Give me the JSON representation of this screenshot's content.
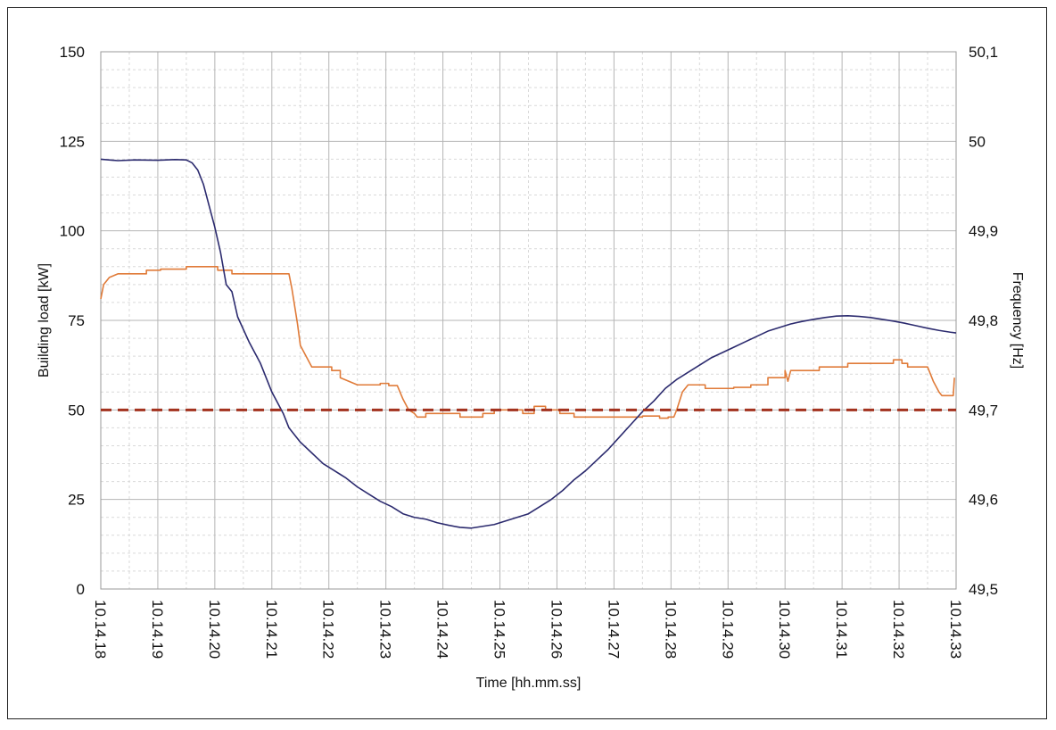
{
  "chart_data": {
    "type": "line",
    "xlabel": "Time [hh.mm.ss]",
    "ylabel_left": "Building load [kW]",
    "ylabel_right": "Frequency [Hz]",
    "x_ticks": [
      "10.14.18",
      "10.14.19",
      "10.14.20",
      "10.14.21",
      "10.14.22",
      "10.14.23",
      "10.14.24",
      "10.14.25",
      "10.14.26",
      "10.14.27",
      "10.14.28",
      "10.14.29",
      "10.14.30",
      "10.14.31",
      "10.14.32",
      "10.14.33"
    ],
    "x_range": [
      0,
      15
    ],
    "y_left_range": [
      0,
      150
    ],
    "y_left_ticks": [
      "0",
      "25",
      "50",
      "75",
      "100",
      "125",
      "150"
    ],
    "y_right_range": [
      49.5,
      50.1
    ],
    "y_right_ticks": [
      "49,5",
      "49,6",
      "49,7",
      "49,8",
      "49,9",
      "50",
      "50,1"
    ],
    "highlight_tick": "49,7",
    "grid": true,
    "colors": {
      "building_load": "#2b2a6e",
      "frequency": "#e07b39",
      "threshold": "#a3321e",
      "grid_major": "#b5b5b5",
      "grid_minor": "#d9d9d9"
    },
    "series": [
      {
        "axis": "left",
        "points": [
          [
            0,
            120
          ],
          [
            0.3,
            119.6
          ],
          [
            0.6,
            119.8
          ],
          [
            1.0,
            119.7
          ],
          [
            1.3,
            119.9
          ],
          [
            1.5,
            119.8
          ],
          [
            1.6,
            119
          ],
          [
            1.7,
            117
          ],
          [
            1.8,
            113
          ],
          [
            1.9,
            107
          ],
          [
            2.0,
            101
          ],
          [
            2.1,
            94
          ],
          [
            2.2,
            85
          ],
          [
            2.3,
            83
          ],
          [
            2.4,
            76
          ],
          [
            2.6,
            69
          ],
          [
            2.8,
            63
          ],
          [
            3.0,
            55
          ],
          [
            3.1,
            52
          ],
          [
            3.2,
            49
          ],
          [
            3.3,
            45
          ],
          [
            3.5,
            41
          ],
          [
            3.7,
            38
          ],
          [
            3.9,
            35
          ],
          [
            4.1,
            33
          ],
          [
            4.3,
            31
          ],
          [
            4.5,
            28.5
          ],
          [
            4.7,
            26.5
          ],
          [
            4.9,
            24.5
          ],
          [
            5.1,
            23
          ],
          [
            5.3,
            21
          ],
          [
            5.5,
            20
          ],
          [
            5.7,
            19.5
          ],
          [
            5.9,
            18.5
          ],
          [
            6.1,
            17.8
          ],
          [
            6.3,
            17.2
          ],
          [
            6.5,
            17
          ],
          [
            6.7,
            17.5
          ],
          [
            6.9,
            18
          ],
          [
            7.1,
            19
          ],
          [
            7.3,
            20
          ],
          [
            7.5,
            21
          ],
          [
            7.7,
            23
          ],
          [
            7.9,
            25
          ],
          [
            8.1,
            27.5
          ],
          [
            8.3,
            30.5
          ],
          [
            8.5,
            33
          ],
          [
            8.7,
            36
          ],
          [
            8.9,
            39
          ],
          [
            9.1,
            42.5
          ],
          [
            9.3,
            46
          ],
          [
            9.5,
            49.5
          ],
          [
            9.7,
            52.5
          ],
          [
            9.9,
            56
          ],
          [
            10.1,
            58.5
          ],
          [
            10.3,
            60.5
          ],
          [
            10.5,
            62.5
          ],
          [
            10.7,
            64.5
          ],
          [
            10.9,
            66
          ],
          [
            11.1,
            67.5
          ],
          [
            11.3,
            69
          ],
          [
            11.5,
            70.5
          ],
          [
            11.7,
            72
          ],
          [
            11.9,
            73
          ],
          [
            12.1,
            74
          ],
          [
            12.3,
            74.7
          ],
          [
            12.5,
            75.3
          ],
          [
            12.7,
            75.8
          ],
          [
            12.9,
            76.2
          ],
          [
            13.1,
            76.3
          ],
          [
            13.3,
            76.1
          ],
          [
            13.5,
            75.8
          ],
          [
            13.7,
            75.3
          ],
          [
            13.9,
            74.8
          ],
          [
            14.1,
            74.2
          ],
          [
            14.3,
            73.5
          ],
          [
            14.5,
            72.8
          ],
          [
            14.7,
            72.2
          ],
          [
            14.9,
            71.7
          ],
          [
            15,
            71.5
          ]
        ]
      },
      {
        "axis": "left",
        "points": [
          [
            0,
            81
          ],
          [
            0.05,
            85
          ],
          [
            0.15,
            87
          ],
          [
            0.3,
            88
          ],
          [
            0.8,
            88
          ],
          [
            0.8,
            89
          ],
          [
            1.05,
            89
          ],
          [
            1.05,
            89.3
          ],
          [
            1.5,
            89.3
          ],
          [
            1.5,
            90
          ],
          [
            2.05,
            90
          ],
          [
            2.05,
            89
          ],
          [
            2.3,
            89
          ],
          [
            2.3,
            88
          ],
          [
            3.3,
            88
          ],
          [
            3.35,
            84
          ],
          [
            3.45,
            74
          ],
          [
            3.5,
            68
          ],
          [
            3.6,
            65
          ],
          [
            3.7,
            62
          ],
          [
            4.05,
            62
          ],
          [
            4.05,
            61
          ],
          [
            4.2,
            61
          ],
          [
            4.2,
            59
          ],
          [
            4.35,
            58
          ],
          [
            4.5,
            57
          ],
          [
            4.9,
            57
          ],
          [
            4.9,
            57.4
          ],
          [
            5.05,
            57.4
          ],
          [
            5.05,
            56.8
          ],
          [
            5.2,
            56.8
          ],
          [
            5.3,
            53
          ],
          [
            5.4,
            50
          ],
          [
            5.5,
            49
          ],
          [
            5.55,
            48
          ],
          [
            5.7,
            48
          ],
          [
            5.7,
            49
          ],
          [
            6.3,
            49
          ],
          [
            6.3,
            48
          ],
          [
            6.7,
            48
          ],
          [
            6.7,
            49
          ],
          [
            6.9,
            49
          ],
          [
            6.9,
            50
          ],
          [
            7.4,
            50
          ],
          [
            7.4,
            49
          ],
          [
            7.6,
            49
          ],
          [
            7.6,
            51
          ],
          [
            7.8,
            51
          ],
          [
            7.8,
            50
          ],
          [
            8.05,
            50
          ],
          [
            8.05,
            49
          ],
          [
            8.3,
            49
          ],
          [
            8.3,
            48
          ],
          [
            9.5,
            48
          ],
          [
            9.5,
            48.3
          ],
          [
            9.8,
            48.3
          ],
          [
            9.8,
            47.7
          ],
          [
            9.95,
            47.7
          ],
          [
            9.95,
            48
          ],
          [
            10.05,
            48
          ],
          [
            10.1,
            50
          ],
          [
            10.2,
            55
          ],
          [
            10.3,
            57
          ],
          [
            10.6,
            57
          ],
          [
            10.6,
            56
          ],
          [
            11.1,
            56
          ],
          [
            11.1,
            56.3
          ],
          [
            11.4,
            56.3
          ],
          [
            11.4,
            57
          ],
          [
            11.7,
            57
          ],
          [
            11.7,
            59
          ],
          [
            12.0,
            59
          ],
          [
            12.0,
            61
          ],
          [
            12.05,
            58
          ],
          [
            12.1,
            61
          ],
          [
            12.6,
            61
          ],
          [
            12.6,
            62
          ],
          [
            13.1,
            62
          ],
          [
            13.1,
            63
          ],
          [
            13.9,
            63
          ],
          [
            13.9,
            64
          ],
          [
            14.05,
            64
          ],
          [
            14.05,
            63
          ],
          [
            14.15,
            63
          ],
          [
            14.15,
            62
          ],
          [
            14.5,
            62
          ],
          [
            14.6,
            58
          ],
          [
            14.7,
            55
          ],
          [
            14.75,
            54
          ],
          [
            14.95,
            54
          ],
          [
            14.97,
            59
          ]
        ]
      },
      {
        "axis": "left",
        "points": [
          [
            0,
            50
          ],
          [
            15,
            50
          ]
        ]
      }
    ]
  }
}
